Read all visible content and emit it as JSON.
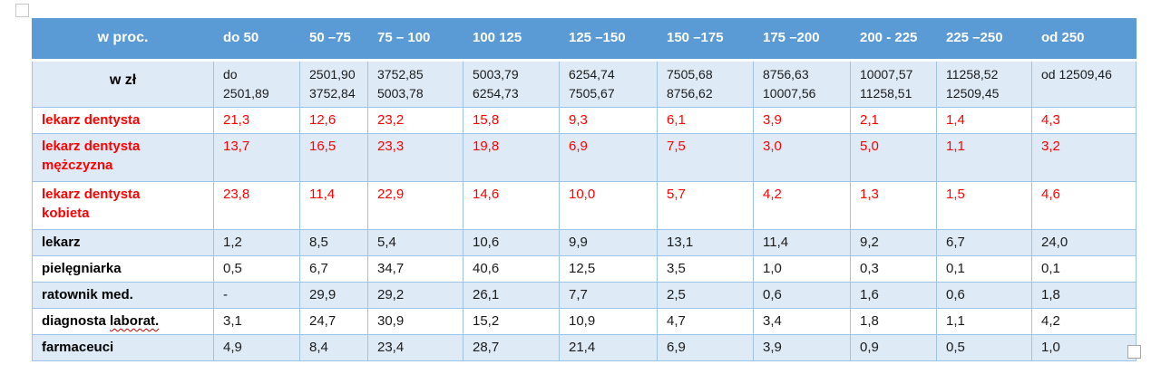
{
  "colors": {
    "header_bg": "#5B9BD5",
    "band_bg": "#DEEAF6",
    "border": "#9DC3E6",
    "red_text": "#FF0000"
  },
  "table": {
    "header_percent": {
      "label": "w proc.",
      "cols": [
        "do 50",
        "50 –75",
        "75 – 100",
        "100 125",
        "125 –150",
        "150 –175",
        "175 –200",
        "200 - 225",
        "225 –250",
        "od 250"
      ]
    },
    "header_zl": {
      "label": "w zł",
      "cols": [
        "do\n2501,89",
        "2501,90\n3752,84",
        "3752,85\n5003,78",
        "5003,79\n6254,73",
        "6254,74\n7505,67",
        "7505,68\n8756,62",
        "8756,63\n10007,56",
        "10007,57\n11258,51",
        "11258,52\n12509,45",
        "od 12509,46"
      ]
    },
    "rows": [
      {
        "label": "lekarz dentysta",
        "style": "red",
        "values": [
          "21,3",
          "12,6",
          "23,2",
          "15,8",
          "9,3",
          "6,1",
          "3,9",
          "2,1",
          "1,4",
          "4,3"
        ]
      },
      {
        "label": "lekarz dentysta\nmężczyzna",
        "style": "red",
        "values": [
          "13,7",
          "16,5",
          "23,3",
          "19,8",
          "6,9",
          "7,5",
          "3,0",
          "5,0",
          "1,1",
          "3,2"
        ]
      },
      {
        "label": "lekarz dentysta\nkobieta",
        "style": "red",
        "values": [
          "23,8",
          "11,4",
          "22,9",
          "14,6",
          "10,0",
          "5,7",
          "4,2",
          "1,3",
          "1,5",
          "4,6"
        ]
      },
      {
        "label": "lekarz",
        "style": "black",
        "values": [
          "1,2",
          "8,5",
          "5,4",
          "10,6",
          "9,9",
          "13,1",
          "11,4",
          "9,2",
          "6,7",
          "24,0"
        ]
      },
      {
        "label": "pielęgniarka",
        "style": "black",
        "values": [
          "0,5",
          "6,7",
          "34,7",
          "40,6",
          "12,5",
          "3,5",
          "1,0",
          "0,3",
          "0,1",
          "0,1"
        ]
      },
      {
        "label": "ratownik med.",
        "style": "black",
        "values": [
          "-",
          "29,9",
          "29,2",
          "26,1",
          "7,7",
          "2,5",
          "0,6",
          "1,6",
          "0,6",
          "1,8"
        ]
      },
      {
        "label": "diagnosta laborat.",
        "style": "black",
        "label_parts": [
          "diagnosta ",
          "laborat."
        ],
        "misspelled_part": 1,
        "values": [
          "3,1",
          "24,7",
          "30,9",
          "15,2",
          "10,9",
          "4,7",
          "3,4",
          "1,8",
          "1,1",
          "4,2"
        ]
      },
      {
        "label": "farmaceuci",
        "style": "black",
        "values": [
          "4,9",
          "8,4",
          "23,4",
          "28,7",
          "21,4",
          "6,9",
          "3,9",
          "0,9",
          "0,5",
          "1,0"
        ]
      }
    ]
  }
}
